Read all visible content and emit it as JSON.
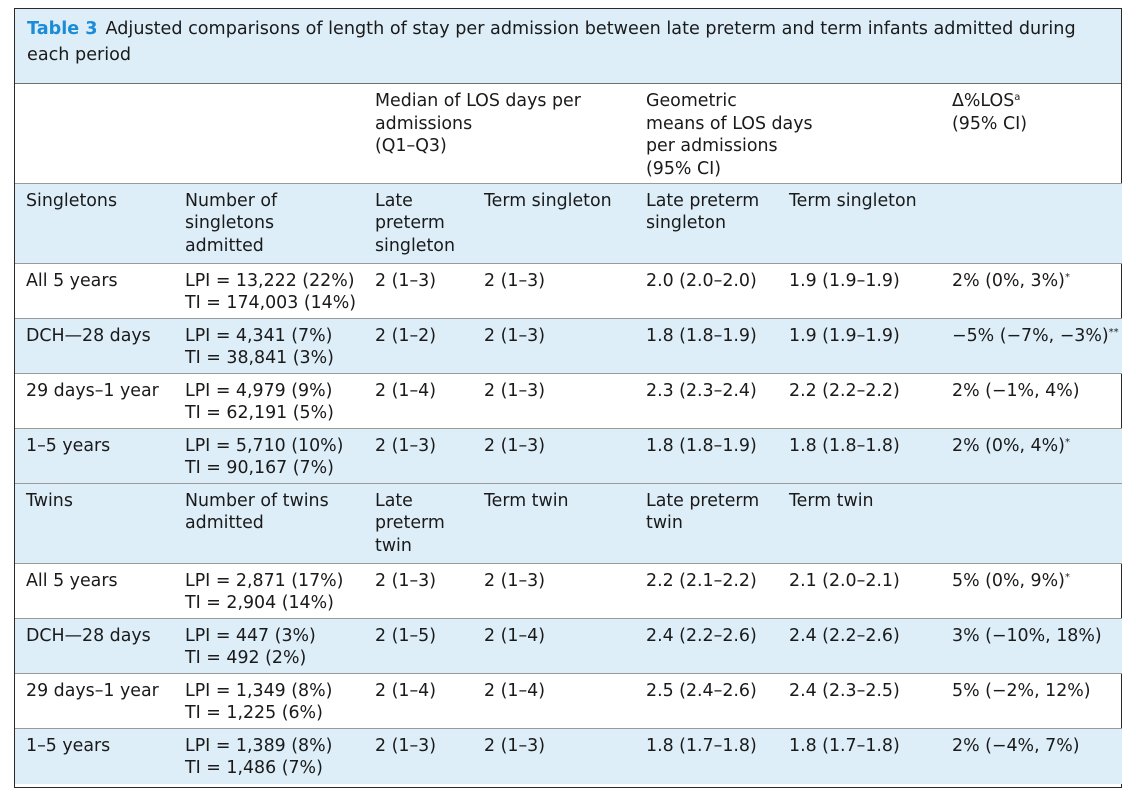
{
  "caption": {
    "label": "Table 3",
    "text": "Adjusted comparisons of length of stay per admission between late preterm and term infants admitted during each period"
  },
  "header": {
    "median": [
      "Median of LOS days per",
      "admissions",
      "(Q1–Q3)"
    ],
    "geometric": [
      "Geometric",
      "means of LOS days",
      "per admissions",
      "(95% CI)"
    ],
    "delta": "Δ%LOS",
    "delta_sup": "a",
    "delta_ci": "(95% CI)"
  },
  "sections": [
    {
      "name": "Singletons",
      "count_label": [
        "Number of",
        "singletons",
        "admitted"
      ],
      "late_label": [
        "Late",
        "preterm",
        "singleton"
      ],
      "term_label": "Term singleton",
      "geo_late_label": [
        "Late preterm",
        "singleton"
      ],
      "geo_term_label": "Term singleton",
      "rows": [
        {
          "period": "All 5 years",
          "lpi": "LPI = 13,222 (22%)",
          "ti": "TI = 174,003 (14%)",
          "med_late": "2 (1–3)",
          "med_term": "2 (1–3)",
          "geo_late": "2.0 (2.0–2.0)",
          "geo_term": "1.9 (1.9–1.9)",
          "delta": "2% (0%, 3%)",
          "sig": "*"
        },
        {
          "period": "DCH—28 days",
          "lpi": "LPI = 4,341 (7%)",
          "ti": "TI = 38,841 (3%)",
          "med_late": "2 (1–2)",
          "med_term": "2 (1–3)",
          "geo_late": "1.8 (1.8–1.9)",
          "geo_term": "1.9 (1.9–1.9)",
          "delta": "−5% (−7%, −3%)",
          "sig": "**"
        },
        {
          "period": "29 days–1 year",
          "lpi": "LPI = 4,979 (9%)",
          "ti": "TI = 62,191 (5%)",
          "med_late": "2 (1–4)",
          "med_term": "2 (1–3)",
          "geo_late": "2.3 (2.3–2.4)",
          "geo_term": "2.2 (2.2–2.2)",
          "delta": "2% (−1%, 4%)",
          "sig": ""
        },
        {
          "period": "1–5 years",
          "lpi": "LPI = 5,710 (10%)",
          "ti": "TI = 90,167 (7%)",
          "med_late": "2 (1–3)",
          "med_term": "2 (1–3)",
          "geo_late": "1.8 (1.8–1.9)",
          "geo_term": "1.8 (1.8–1.8)",
          "delta": "2% (0%, 4%)",
          "sig": "*"
        }
      ]
    },
    {
      "name": "Twins",
      "count_label": [
        "Number of twins",
        "admitted"
      ],
      "late_label": [
        "Late",
        "preterm",
        "twin"
      ],
      "term_label": "Term twin",
      "geo_late_label": [
        "Late preterm",
        "twin"
      ],
      "geo_term_label": "Term twin",
      "rows": [
        {
          "period": "All 5 years",
          "lpi": "LPI = 2,871 (17%)",
          "ti": "TI = 2,904 (14%)",
          "med_late": "2 (1–3)",
          "med_term": "2 (1–3)",
          "geo_late": "2.2 (2.1–2.2)",
          "geo_term": "2.1 (2.0–2.1)",
          "delta": "5% (0%, 9%)",
          "sig": "*"
        },
        {
          "period": "DCH—28 days",
          "lpi": "LPI = 447 (3%)",
          "ti": "TI = 492 (2%)",
          "med_late": "2 (1–5)",
          "med_term": "2 (1–4)",
          "geo_late": "2.4 (2.2–2.6)",
          "geo_term": "2.4 (2.2–2.6)",
          "delta": "3% (−10%, 18%)",
          "sig": ""
        },
        {
          "period": "29 days–1 year",
          "lpi": "LPI = 1,349 (8%)",
          "ti": "TI = 1,225 (6%)",
          "med_late": "2 (1–4)",
          "med_term": "2 (1–4)",
          "geo_late": "2.5 (2.4–2.6)",
          "geo_term": "2.4 (2.3–2.5)",
          "delta": "5% (−2%, 12%)",
          "sig": ""
        },
        {
          "period": "1–5 years",
          "lpi": "LPI = 1,389 (8%)",
          "ti": "TI = 1,486 (7%)",
          "med_late": "2 (1–3)",
          "med_term": "2 (1–3)",
          "geo_late": "1.8 (1.7–1.8)",
          "geo_term": "1.8 (1.7–1.8)",
          "delta": "2% (−4%, 7%)",
          "sig": ""
        }
      ]
    }
  ]
}
